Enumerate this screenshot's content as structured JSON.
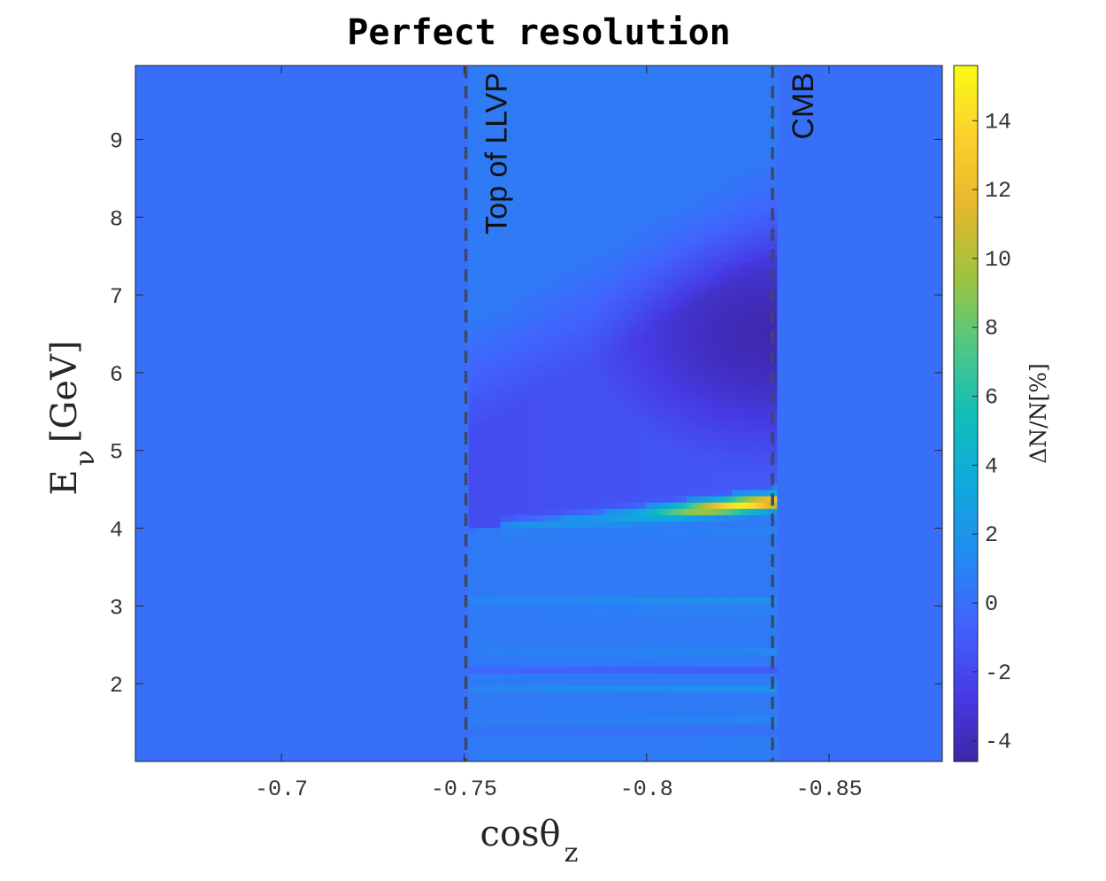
{
  "chart_data": {
    "type": "heatmap",
    "title": "Perfect resolution",
    "xlabel": {
      "main": "cosθ",
      "sub": "z"
    },
    "ylabel": {
      "main": "E",
      "sub": "ν",
      "unit": "[GeV]"
    },
    "xlim": [
      -0.66,
      -0.881
    ],
    "ylim": [
      1.0,
      9.95
    ],
    "x_reversed": true,
    "xticks": [
      -0.7,
      -0.75,
      -0.8,
      -0.85
    ],
    "xtick_labels": [
      "-0.7",
      "-0.75",
      "-0.8",
      "-0.85"
    ],
    "yticks": [
      2,
      3,
      4,
      5,
      6,
      7,
      8,
      9
    ],
    "ytick_labels": [
      "2",
      "3",
      "4",
      "5",
      "6",
      "7",
      "8",
      "9"
    ],
    "colorbar": {
      "label": "ΔN/N[%]",
      "range": [
        -4.6,
        15.6
      ],
      "ticks": [
        -4,
        -2,
        0,
        2,
        4,
        6,
        8,
        10,
        12,
        14
      ],
      "tick_labels": [
        "-4",
        "-2",
        "0",
        "2",
        "4",
        "6",
        "8",
        "10",
        "12",
        "14"
      ],
      "colormap": "parula"
    },
    "background_value": 0,
    "annotations": [
      {
        "x": -0.7505,
        "text": "Top of LLVP"
      },
      {
        "x": -0.8345,
        "text": "CMB"
      }
    ],
    "features": [
      {
        "kind": "deficit-region",
        "x_range": [
          -0.751,
          -0.836
        ],
        "y_bottom_at_left": 3.95,
        "y_bottom_at_right": 4.55,
        "y_top_at_left": 5.2,
        "y_top_at_right": 7.5,
        "min_value": -4.3,
        "min_at": {
          "x": -0.834,
          "y": 6.5
        }
      },
      {
        "kind": "resonance-ridge",
        "x_range": [
          -0.76,
          -0.836
        ],
        "y_at_left": 4.0,
        "y_at_right": 4.35,
        "peak_value": 15,
        "peak_at": {
          "x": -0.828,
          "y": 4.35
        }
      },
      {
        "kind": "stripes",
        "x_range": [
          -0.751,
          -0.836
        ],
        "rows": [
          {
            "y": 3.95,
            "value": 1.0
          },
          {
            "y": 3.05,
            "value": 2.5
          },
          {
            "y": 2.95,
            "value": 1.2
          },
          {
            "y": 2.8,
            "value": 0.8
          },
          {
            "y": 2.4,
            "value": 1.6
          },
          {
            "y": 2.2,
            "value": -1.6
          },
          {
            "y": 1.95,
            "value": 2.2
          },
          {
            "y": 1.55,
            "value": 1.4
          },
          {
            "y": 1.4,
            "value": -0.6
          },
          {
            "y": 1.25,
            "value": 1.0
          }
        ]
      }
    ],
    "grid": false
  }
}
